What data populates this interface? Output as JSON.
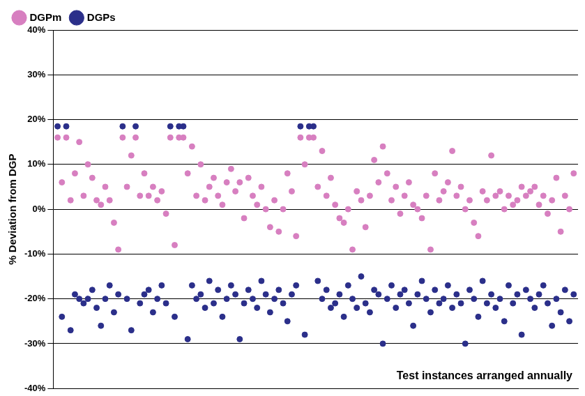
{
  "chart_data": {
    "type": "scatter",
    "y_label": "% Deviation from DGP",
    "annotation": "Test instances arranged annually",
    "x": [
      1,
      2,
      3,
      4,
      5,
      6,
      7,
      8,
      9,
      10,
      11,
      12,
      13,
      14,
      15,
      16,
      17,
      18,
      19,
      20,
      21,
      22,
      23,
      24,
      25,
      26,
      27,
      28,
      29,
      30,
      31,
      32,
      33,
      34,
      35,
      36,
      37,
      38,
      39,
      40,
      41,
      42,
      43,
      44,
      45,
      46,
      47,
      48,
      49,
      50,
      51,
      52,
      53,
      54,
      55,
      56,
      57,
      58,
      59,
      60,
      61,
      62,
      63,
      64,
      65,
      66,
      67,
      68,
      69,
      70,
      71,
      72,
      73,
      74,
      75,
      76,
      77,
      78,
      79,
      80,
      81,
      82,
      83,
      84,
      85,
      86,
      87,
      88,
      89,
      90,
      91,
      92,
      93,
      94,
      95,
      96,
      97,
      98,
      99,
      100,
      101,
      102,
      103,
      104,
      105,
      106,
      107,
      108,
      109,
      110,
      111,
      112,
      113,
      114,
      115,
      116,
      117,
      118,
      119,
      120
    ],
    "series": [
      {
        "name": "DGPm",
        "color": "#d77fc0",
        "marker": "circle",
        "values": [
          16,
          6,
          16,
          2,
          8,
          15,
          3,
          10,
          7,
          2,
          1,
          5,
          2,
          -3,
          -9,
          16,
          5,
          12,
          16,
          3,
          8,
          3,
          5,
          2,
          4,
          -1,
          16,
          -8,
          16,
          16,
          8,
          14,
          3,
          10,
          2,
          5,
          7,
          3,
          1,
          6,
          9,
          4,
          6,
          -2,
          7,
          3,
          1,
          5,
          0,
          -4,
          2,
          -5,
          0,
          8,
          4,
          -6,
          16,
          10,
          16,
          16,
          5,
          13,
          3,
          7,
          1,
          -2,
          -3,
          0,
          -9,
          4,
          2,
          -4,
          3,
          11,
          6,
          14,
          8,
          2,
          5,
          -1,
          3,
          6,
          1,
          0,
          -2,
          3,
          -9,
          8,
          2,
          4,
          6,
          13,
          3,
          5,
          0,
          2,
          -3,
          -6,
          4,
          2,
          12,
          3,
          4,
          0,
          3,
          1,
          2,
          5,
          3,
          4,
          5,
          1,
          3,
          -1,
          2,
          7,
          -5,
          3,
          0,
          8
        ]
      },
      {
        "name": "DGPs",
        "color": "#2b2f8a",
        "marker": "circle",
        "values": [
          18.5,
          -24,
          18.5,
          -27,
          -19,
          -20,
          -21,
          -20,
          -18,
          -22,
          -26,
          -20,
          -17,
          -23,
          -19,
          18.5,
          -20,
          -27,
          18.5,
          -21,
          -19,
          -18,
          -23,
          -20,
          -17,
          -21,
          18.5,
          -24,
          18.5,
          18.5,
          -29,
          -17,
          -20,
          -19,
          -22,
          -16,
          -21,
          -18,
          -24,
          -20,
          -17,
          -19,
          -29,
          -21,
          -18,
          -20,
          -22,
          -16,
          -19,
          -23,
          -20,
          -18,
          -21,
          -25,
          -19,
          -17,
          18.5,
          -28,
          18.5,
          18.5,
          -16,
          -20,
          -18,
          -22,
          -21,
          -19,
          -24,
          -17,
          -20,
          -22,
          -15,
          -21,
          -23,
          -18,
          -19,
          -30,
          -20,
          -17,
          -22,
          -19,
          -18,
          -21,
          -26,
          -19,
          -16,
          -20,
          -23,
          -18,
          -21,
          -20,
          -17,
          -22,
          -19,
          -21,
          -30,
          -18,
          -20,
          -24,
          -16,
          -21,
          -19,
          -22,
          -20,
          -25,
          -17,
          -21,
          -19,
          -28,
          -18,
          -20,
          -22,
          -19,
          -17,
          -21,
          -26,
          -20,
          -23,
          -18,
          -25,
          -19
        ]
      }
    ],
    "xlim": [
      0,
      121
    ],
    "ylim": [
      -40,
      40
    ],
    "yticks": [
      {
        "value": -40,
        "label": "-40%"
      },
      {
        "value": -30,
        "label": "-30%"
      },
      {
        "value": -20,
        "label": "-20%"
      },
      {
        "value": -10,
        "label": "-10%"
      },
      {
        "value": 0,
        "label": "0%"
      },
      {
        "value": 10,
        "label": "10%"
      },
      {
        "value": 20,
        "label": "20%"
      },
      {
        "value": 30,
        "label": "30%"
      },
      {
        "value": 40,
        "label": "40%"
      }
    ],
    "grid": "y",
    "legend": "top-left",
    "tick_labels": "y"
  }
}
